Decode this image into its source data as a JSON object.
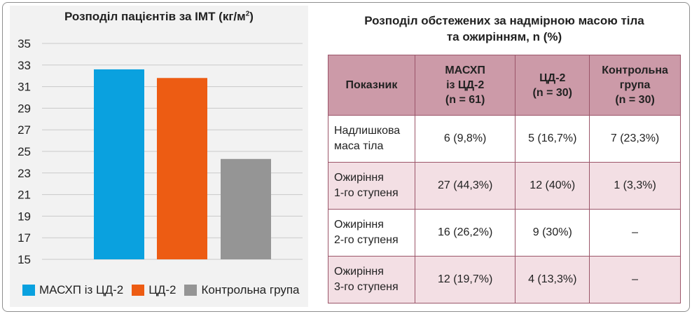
{
  "chart_data": {
    "type": "bar",
    "title": "Розподіл пацієнтів за ІМТ (кг/м",
    "title_sup": "2",
    "title_close": ")",
    "categories": [
      "МАСХП із ЦД-2",
      "ЦД-2",
      "Контрольна група"
    ],
    "values": [
      32.6,
      31.8,
      24.3
    ],
    "colors": [
      "#0aa1df",
      "#ed5c13",
      "#959595"
    ],
    "ylim": [
      15,
      35
    ],
    "yticks": [
      15,
      17,
      19,
      21,
      23,
      25,
      27,
      29,
      31,
      33,
      35
    ],
    "grid": true,
    "legend": "bottom"
  },
  "table": {
    "title_line1": "Розподіл обстежених за надмірною масою тіла",
    "title_line2": "та ожирінням, n (%)",
    "headers": [
      [
        "Показник"
      ],
      [
        "МАСХП",
        "із ЦД-2",
        "(n = 61)"
      ],
      [
        "ЦД-2",
        "(n = 30)"
      ],
      [
        "Контрольна",
        "група",
        "(n = 30)"
      ]
    ],
    "rows": [
      {
        "label": [
          "Надлишкова",
          "маса тіла"
        ],
        "values": [
          "6 (9,8%)",
          "5 (16,7%)",
          "7 (23,3%)"
        ]
      },
      {
        "label": [
          "Ожиріння",
          "1-го ступеня"
        ],
        "values": [
          "27 (44,3%)",
          "12 (40%)",
          "1 (3,3%)"
        ]
      },
      {
        "label": [
          "Ожиріння",
          "2-го ступеня"
        ],
        "values": [
          "16 (26,2%)",
          "9 (30%)",
          "–"
        ]
      },
      {
        "label": [
          "Ожиріння",
          "3-го ступеня"
        ],
        "values": [
          "12 (19,7%)",
          "4 (13,3%)",
          "–"
        ]
      }
    ]
  }
}
